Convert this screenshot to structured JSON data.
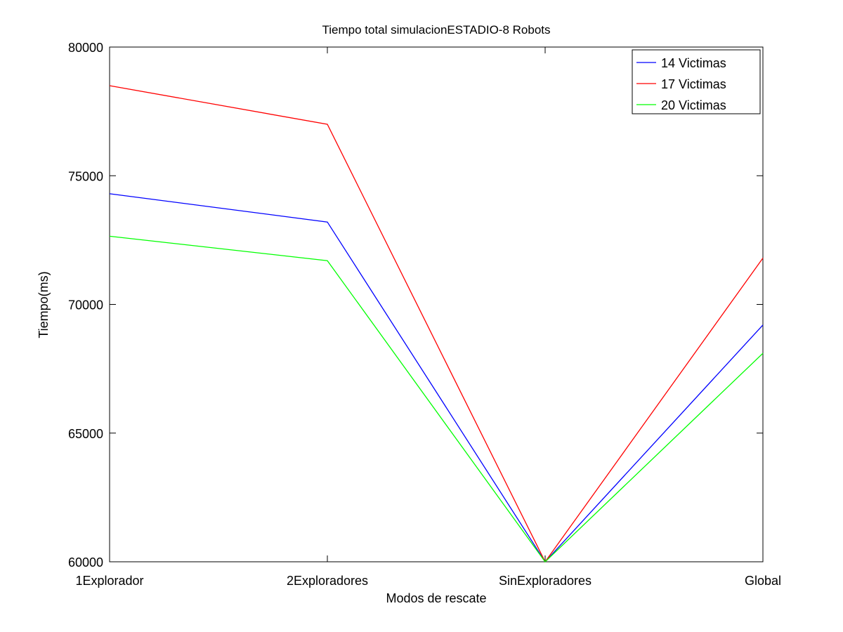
{
  "chart_data": {
    "type": "line",
    "title": "Tiempo total simulacionESTADIO-8 Robots",
    "xlabel": "Modos de rescate",
    "ylabel": "Tiempo(ms)",
    "categories": [
      "1Explorador",
      "2Exploradores",
      "SinExploradores",
      "Global"
    ],
    "ylim": [
      60000,
      80000
    ],
    "yticks": [
      60000,
      65000,
      70000,
      75000,
      80000
    ],
    "grid": false,
    "legend_position": "top-right",
    "series": [
      {
        "name": "14 Victimas",
        "color": "#0000ff",
        "values": [
          74300,
          73200,
          60000,
          69200
        ]
      },
      {
        "name": "17 Victimas",
        "color": "#ff0000",
        "values": [
          78500,
          77000,
          60000,
          71800
        ]
      },
      {
        "name": "20 Victimas",
        "color": "#00ff00",
        "values": [
          72650,
          71700,
          60000,
          68100
        ]
      }
    ]
  }
}
